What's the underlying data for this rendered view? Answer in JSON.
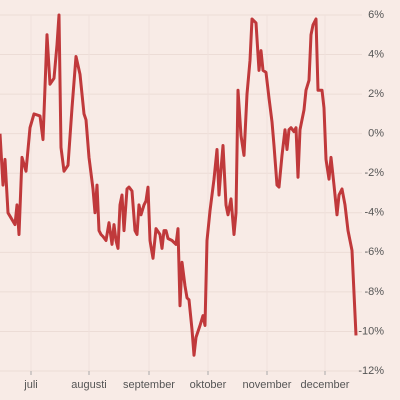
{
  "chart_data": {
    "type": "line",
    "color": "#c0393b",
    "grid": true,
    "x": [
      0,
      3,
      5,
      8,
      15,
      17,
      19,
      22,
      26,
      30,
      34,
      40,
      43,
      47,
      50,
      54,
      57,
      59,
      61,
      64,
      68,
      72,
      76,
      80,
      84,
      86,
      89,
      93,
      95,
      97,
      99,
      101,
      103,
      106,
      109,
      112,
      114,
      116,
      118,
      120,
      122,
      124,
      127,
      129,
      132,
      135,
      137,
      139,
      141,
      144,
      146,
      148,
      150,
      153,
      156,
      160,
      162,
      164,
      166,
      168,
      172,
      176,
      178,
      180,
      182,
      185,
      187,
      189,
      192,
      194,
      196,
      200,
      203,
      205,
      207,
      210,
      214,
      217,
      219,
      221,
      223,
      226,
      228,
      231,
      234,
      236,
      238,
      241,
      244,
      247,
      250,
      252,
      256,
      259,
      261,
      263,
      266,
      269,
      272,
      274,
      277,
      279,
      282,
      285,
      287,
      289,
      291,
      294,
      296,
      298,
      300,
      304,
      306,
      309,
      311,
      313,
      316,
      318,
      322,
      324,
      326,
      329,
      331,
      334,
      337,
      339,
      342,
      345,
      348,
      352,
      356
    ],
    "values": [
      0.0,
      -2.6,
      -1.3,
      -4.0,
      -4.6,
      -3.6,
      -5.1,
      -1.2,
      -1.9,
      0.3,
      1.0,
      0.9,
      -0.3,
      5.0,
      2.5,
      2.8,
      4.5,
      6.0,
      -0.7,
      -1.9,
      -1.6,
      1.3,
      3.9,
      3.0,
      1.0,
      0.7,
      -1.2,
      -2.8,
      -4.0,
      -2.6,
      -4.9,
      -5.1,
      -5.2,
      -5.4,
      -4.5,
      -5.6,
      -4.6,
      -5.4,
      -5.8,
      -3.6,
      -3.1,
      -4.9,
      -2.8,
      -2.7,
      -2.9,
      -4.9,
      -5.1,
      -3.6,
      -4.1,
      -3.6,
      -3.4,
      -2.7,
      -5.4,
      -6.3,
      -4.8,
      -5.1,
      -5.8,
      -4.9,
      -4.9,
      -5.3,
      -5.4,
      -5.6,
      -4.8,
      -8.7,
      -6.5,
      -7.7,
      -8.3,
      -8.4,
      -9.9,
      -11.2,
      -10.3,
      -9.7,
      -9.2,
      -9.7,
      -5.4,
      -3.9,
      -2.3,
      -0.8,
      -3.1,
      -1.8,
      -0.6,
      -3.6,
      -4.1,
      -3.3,
      -5.1,
      -4.0,
      2.2,
      -0.1,
      -1.1,
      2.0,
      3.7,
      5.8,
      5.6,
      3.2,
      4.2,
      3.2,
      3.1,
      1.8,
      0.6,
      -0.6,
      -2.6,
      -2.7,
      -1.1,
      0.2,
      -0.8,
      0.2,
      0.3,
      0.1,
      0.3,
      -2.2,
      0.2,
      1.2,
      2.2,
      2.7,
      5.0,
      5.5,
      5.8,
      2.2,
      2.2,
      1.3,
      -1.3,
      -2.3,
      -1.2,
      -2.6,
      -4.1,
      -3.1,
      -2.8,
      -3.6,
      -4.9,
      -5.9,
      -10.2
    ],
    "xlim": [
      0,
      356
    ],
    "xticks": [
      {
        "value": 31,
        "label": "juli"
      },
      {
        "value": 89,
        "label": "augusti"
      },
      {
        "value": 149,
        "label": "september"
      },
      {
        "value": 208,
        "label": "oktober"
      },
      {
        "value": 267,
        "label": "november"
      },
      {
        "value": 325,
        "label": "december"
      }
    ],
    "ylim": [
      -12,
      6
    ],
    "yticks": [
      {
        "value": 6,
        "label": "6%"
      },
      {
        "value": 4,
        "label": "4%"
      },
      {
        "value": 2,
        "label": "2%"
      },
      {
        "value": 0,
        "label": "0%"
      },
      {
        "value": -2,
        "label": "-2%"
      },
      {
        "value": -4,
        "label": "-4%"
      },
      {
        "value": -6,
        "label": "-6%"
      },
      {
        "value": -8,
        "label": "-8%"
      },
      {
        "value": -10,
        "label": "-10%"
      },
      {
        "value": -12,
        "label": "-12%"
      }
    ]
  }
}
